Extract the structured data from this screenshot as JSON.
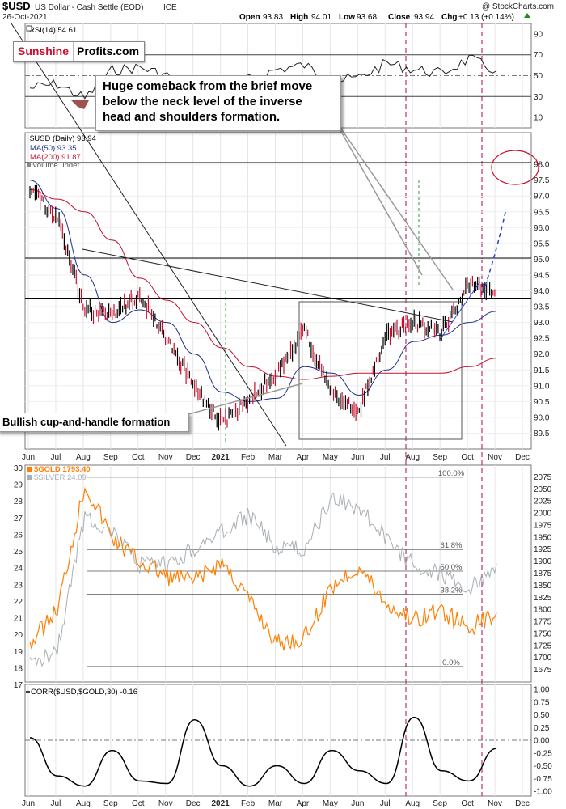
{
  "header": {
    "symbol": "$USD",
    "name": "US Dollar - Cash Settle (EOD)",
    "exchange": "ICE",
    "date": "26-Oct-2021",
    "watermark": "@ StockCharts.com",
    "open_label": "Open",
    "open": "93.83",
    "high_label": "High",
    "high": "94.01",
    "low_label": "Low",
    "low": "93.68",
    "close_label": "Close",
    "close": "93.94",
    "chg_label": "Chg",
    "chg": "+0.13 (+0.14%)"
  },
  "logo": {
    "part1": "Sunshine",
    "part2": "Profits.com"
  },
  "annotations": {
    "callout_main": [
      "Huge comeback from the brief move",
      "below the neck level of the inverse",
      "head and shoulders formation."
    ],
    "callout_cup": "Bullish cup-and-handle formation"
  },
  "colors": {
    "usd": "#c8102e",
    "gold": "#ff7f00",
    "silver": "#a7afb5",
    "ma50": "#1f2f8a",
    "ma200": "#c8102e",
    "projection": "#2d3fd6",
    "vline": "#c0306a",
    "green": "#2aa02a"
  },
  "chart_data": [
    {
      "type": "line",
      "title": "RSI(14) 54.61",
      "ylim": [
        0,
        100
      ],
      "yticks": [
        "90",
        "70",
        "50",
        "30",
        "10"
      ],
      "x": [
        "Jun",
        "Jul",
        "Aug",
        "Sep",
        "Oct",
        "Nov",
        "Dec",
        "2021",
        "Feb",
        "Mar",
        "Apr",
        "May",
        "Jun",
        "Jul",
        "Aug",
        "Sep",
        "Oct",
        "Nov"
      ],
      "series": [
        {
          "name": "RSI(14)",
          "values": [
            38,
            42,
            28,
            55,
            58,
            50,
            40,
            42,
            46,
            56,
            60,
            44,
            48,
            62,
            56,
            52,
            66,
            54.61
          ]
        }
      ],
      "levels": [
        70,
        50,
        30
      ]
    },
    {
      "type": "line",
      "title": "$USD (Daily) 93.94",
      "legend": [
        "$USD (Daily) 93.94",
        "MA(50) 93.35",
        "MA(200) 91.87",
        "Volume undef"
      ],
      "ylim": [
        89.0,
        99.0
      ],
      "yticks": [
        "98.0",
        "97.5",
        "97.0",
        "96.5",
        "96.0",
        "95.5",
        "95.0",
        "94.5",
        "94.0",
        "93.5",
        "93.0",
        "92.5",
        "92.0",
        "91.5",
        "91.0",
        "90.5",
        "90.0",
        "89.5"
      ],
      "xticks": [
        "Jun",
        "Jul",
        "Aug",
        "Sep",
        "Oct",
        "Nov",
        "Dec",
        "2021",
        "Feb",
        "Mar",
        "Apr",
        "May",
        "Jun",
        "Jul",
        "Aug",
        "Sep",
        "Oct",
        "Nov",
        "Dec"
      ],
      "x": [
        "Jun",
        "Jul",
        "Aug",
        "Sep",
        "Oct",
        "Nov",
        "Dec",
        "2021",
        "Feb",
        "Mar",
        "Apr",
        "May",
        "Jun",
        "Jul",
        "Aug",
        "Sep",
        "Oct",
        "Nov"
      ],
      "series": [
        {
          "name": "$USD (Daily)",
          "values": [
            97.2,
            96.3,
            93.4,
            93.2,
            93.9,
            92.5,
            91.0,
            89.8,
            90.6,
            91.4,
            92.8,
            90.7,
            90.2,
            92.6,
            93.0,
            92.7,
            94.2,
            93.94
          ]
        },
        {
          "name": "MA(50)",
          "values": [
            97.5,
            96.6,
            94.5,
            93.0,
            93.4,
            93.0,
            92.0,
            90.8,
            90.5,
            90.6,
            91.6,
            91.4,
            90.7,
            91.5,
            92.4,
            92.6,
            93.0,
            93.35
          ]
        },
        {
          "name": "MA(200)",
          "values": [
            97.2,
            96.9,
            96.5,
            95.6,
            94.4,
            93.7,
            93.0,
            92.2,
            91.6,
            91.3,
            91.2,
            91.3,
            91.4,
            91.4,
            91.4,
            91.4,
            91.6,
            91.87
          ]
        }
      ],
      "levels": [
        97.75,
        94.75,
        93.55
      ]
    },
    {
      "type": "line",
      "title": "$GOLD 1793.40",
      "legend": [
        "$GOLD 1793.40",
        "$SILVER 24.09"
      ],
      "ylim_left": [
        17,
        30
      ],
      "ylim_right": [
        1650,
        2100
      ],
      "yticks_left": [
        "30",
        "29",
        "28",
        "27",
        "26",
        "25",
        "24",
        "23",
        "22",
        "21",
        "20",
        "19",
        "18",
        "17"
      ],
      "yticks_right": [
        "2075",
        "2050",
        "2025",
        "2000",
        "1975",
        "1950",
        "1925",
        "1900",
        "1875",
        "1850",
        "1825",
        "1800",
        "1775",
        "1750",
        "1725",
        "1700",
        "1675"
      ],
      "x": [
        "Jun",
        "Jul",
        "Aug",
        "Sep",
        "Oct",
        "Nov",
        "Dec",
        "2021",
        "Feb",
        "Mar",
        "Apr",
        "May",
        "Jun",
        "Jul",
        "Aug",
        "Sep",
        "Oct",
        "Nov"
      ],
      "series": [
        {
          "name": "$GOLD",
          "values": [
            1730,
            1800,
            2060,
            1950,
            1900,
            1870,
            1860,
            1900,
            1820,
            1730,
            1740,
            1850,
            1890,
            1810,
            1780,
            1800,
            1760,
            1793.4
          ]
        },
        {
          "name": "$SILVER",
          "values": [
            18,
            19,
            27,
            26,
            24,
            24,
            25,
            26,
            27,
            25,
            25,
            28,
            27.5,
            25.5,
            24,
            23.5,
            22.5,
            24.09
          ]
        }
      ],
      "fibonacci": [
        {
          "label": "100.0%",
          "value": 2075
        },
        {
          "label": "61.8%",
          "value": 1925
        },
        {
          "label": "50.0%",
          "value": 1880
        },
        {
          "label": "38.2%",
          "value": 1832
        },
        {
          "label": "0.0%",
          "value": 1682
        }
      ]
    },
    {
      "type": "line",
      "title": "CORR($USD,$GOLD,30) -0.16",
      "ylim": [
        -1.0,
        1.0
      ],
      "yticks": [
        "1.00",
        "0.75",
        "0.50",
        "0.25",
        "0.00",
        "-0.25",
        "-0.50",
        "-0.75",
        "-1.00"
      ],
      "xticks": [
        "Jun",
        "Jul",
        "Aug",
        "Sep",
        "Oct",
        "Nov",
        "Dec",
        "2021",
        "Feb",
        "Mar",
        "Apr",
        "May",
        "Jun",
        "Jul",
        "Aug",
        "Sep",
        "Oct",
        "Nov",
        "Dec"
      ],
      "x": [
        "Jun",
        "Jul",
        "Aug",
        "Sep",
        "Oct",
        "Nov",
        "Dec",
        "2021",
        "Feb",
        "Mar",
        "Apr",
        "May",
        "Jun",
        "Jul",
        "Aug",
        "Sep",
        "Oct",
        "Nov"
      ],
      "series": [
        {
          "name": "CORR($USD,$GOLD,30)",
          "values": [
            0.05,
            -0.7,
            -0.9,
            -0.2,
            -0.8,
            -0.85,
            0.4,
            -0.5,
            -0.9,
            -0.5,
            -0.85,
            -0.2,
            -0.6,
            -0.85,
            0.45,
            -0.6,
            -0.8,
            -0.16
          ]
        }
      ],
      "levels": [
        0.0
      ]
    }
  ]
}
